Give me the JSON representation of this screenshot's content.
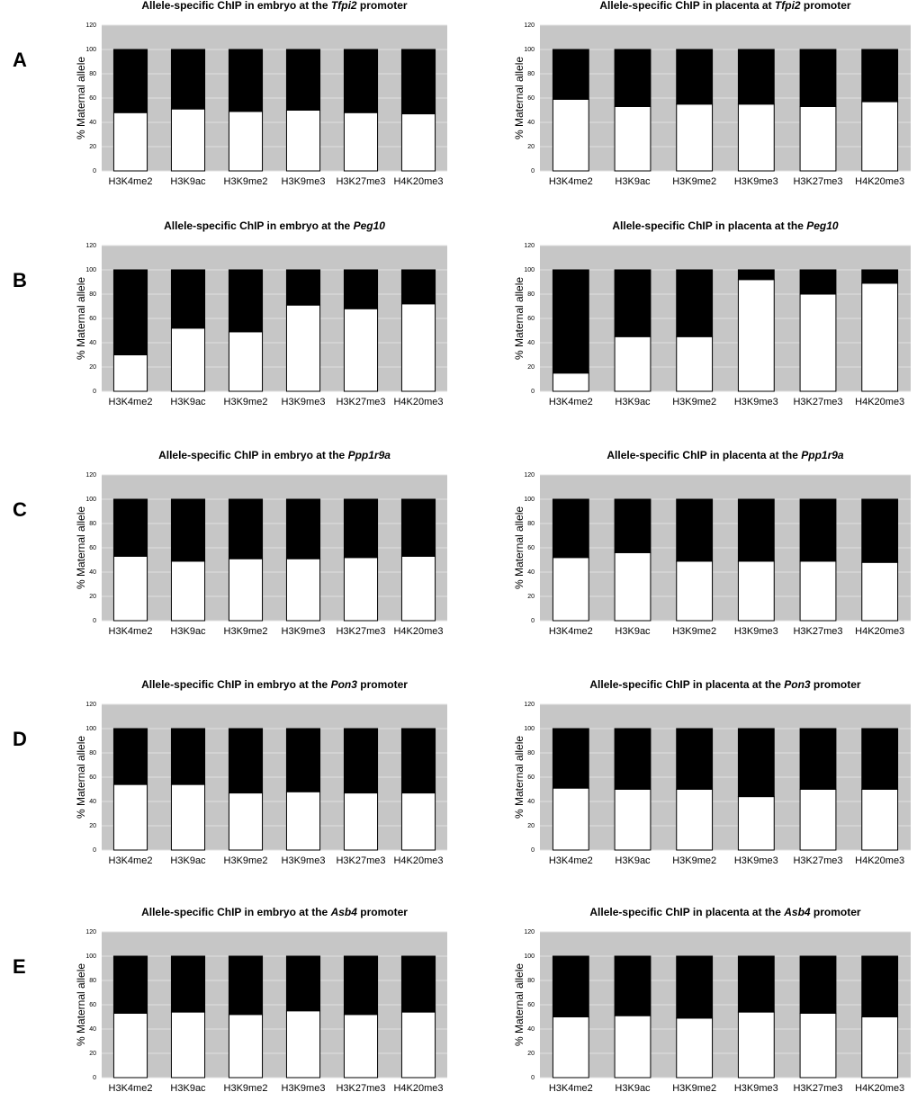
{
  "panel_labels": [
    "A",
    "B",
    "C",
    "D",
    "E"
  ],
  "chart_data": [
    {
      "type": "bar",
      "stacked": true,
      "title": [
        "Allele-specific ChIP in embryo at the ",
        "Tfpi2",
        " promoter"
      ],
      "ylabel": "% Maternal allele",
      "categories": [
        "H3K4me2",
        "H3K9ac",
        "H3K9me2",
        "H3K9me3",
        "H3K27me3",
        "H4K20me3"
      ],
      "series": [
        {
          "color": "#ffffff",
          "values": [
            48,
            51,
            49,
            50,
            48,
            47
          ]
        },
        {
          "color": "#000000",
          "values": [
            52,
            49,
            51,
            50,
            52,
            53
          ]
        }
      ],
      "ylim": [
        0,
        120
      ],
      "yticks": [
        0,
        20,
        40,
        60,
        80,
        100,
        120
      ],
      "grid": true
    },
    {
      "type": "bar",
      "stacked": true,
      "title": [
        "Allele-specific ChIP in placenta at ",
        "Tfpi2",
        " promoter"
      ],
      "ylabel": "% Maternal allele",
      "categories": [
        "H3K4me2",
        "H3K9ac",
        "H3K9me2",
        "H3K9me3",
        "H3K27me3",
        "H4K20me3"
      ],
      "series": [
        {
          "color": "#ffffff",
          "values": [
            59,
            53,
            55,
            55,
            53,
            57
          ]
        },
        {
          "color": "#000000",
          "values": [
            41,
            47,
            45,
            45,
            47,
            43
          ]
        }
      ],
      "ylim": [
        0,
        120
      ],
      "yticks": [
        0,
        20,
        40,
        60,
        80,
        100,
        120
      ],
      "grid": true
    },
    {
      "type": "bar",
      "stacked": true,
      "title": [
        "Allele-specific ChIP in embryo at the ",
        "Peg10"
      ],
      "ylabel": "% Maternal allele",
      "categories": [
        "H3K4me2",
        "H3K9ac",
        "H3K9me2",
        "H3K9me3",
        "H3K27me3",
        "H4K20me3"
      ],
      "series": [
        {
          "color": "#ffffff",
          "values": [
            30,
            52,
            49,
            71,
            68,
            72
          ]
        },
        {
          "color": "#000000",
          "values": [
            70,
            48,
            51,
            29,
            32,
            28
          ]
        }
      ],
      "ylim": [
        0,
        120
      ],
      "yticks": [
        0,
        20,
        40,
        60,
        80,
        100,
        120
      ],
      "grid": true
    },
    {
      "type": "bar",
      "stacked": true,
      "title": [
        "Allele-specific ChIP in placenta at the ",
        "Peg10"
      ],
      "ylabel": "% Maternal allele",
      "categories": [
        "H3K4me2",
        "H3K9ac",
        "H3K9me2",
        "H3K9me3",
        "H3K27me3",
        "H4K20me3"
      ],
      "series": [
        {
          "color": "#ffffff",
          "values": [
            15,
            45,
            45,
            92,
            80,
            89
          ]
        },
        {
          "color": "#000000",
          "values": [
            85,
            55,
            55,
            8,
            20,
            11
          ]
        }
      ],
      "ylim": [
        0,
        120
      ],
      "yticks": [
        0,
        20,
        40,
        60,
        80,
        100,
        120
      ],
      "grid": true
    },
    {
      "type": "bar",
      "stacked": true,
      "title": [
        "Allele-specific ChIP in embryo at the ",
        "Ppp1r9a"
      ],
      "ylabel": "% Maternal allele",
      "categories": [
        "H3K4me2",
        "H3K9ac",
        "H3K9me2",
        "H3K9me3",
        "H3K27me3",
        "H4K20me3"
      ],
      "series": [
        {
          "color": "#ffffff",
          "values": [
            53,
            49,
            51,
            51,
            52,
            53
          ]
        },
        {
          "color": "#000000",
          "values": [
            47,
            51,
            49,
            49,
            48,
            47
          ]
        }
      ],
      "ylim": [
        0,
        120
      ],
      "yticks": [
        0,
        20,
        40,
        60,
        80,
        100,
        120
      ],
      "grid": true
    },
    {
      "type": "bar",
      "stacked": true,
      "title": [
        "Allele-specific ChIP in placenta at the ",
        "Ppp1r9a"
      ],
      "ylabel": "% Maternal allele",
      "categories": [
        "H3K4me2",
        "H3K9ac",
        "H3K9me2",
        "H3K9me3",
        "H3K27me3",
        "H4K20me3"
      ],
      "series": [
        {
          "color": "#ffffff",
          "values": [
            52,
            56,
            49,
            49,
            49,
            48
          ]
        },
        {
          "color": "#000000",
          "values": [
            48,
            44,
            51,
            51,
            51,
            52
          ]
        }
      ],
      "ylim": [
        0,
        120
      ],
      "yticks": [
        0,
        20,
        40,
        60,
        80,
        100,
        120
      ],
      "grid": true
    },
    {
      "type": "bar",
      "stacked": true,
      "title": [
        "Allele-specific ChIP in embryo at the ",
        "Pon3",
        " promoter"
      ],
      "ylabel": "% Maternal allele",
      "categories": [
        "H3K4me2",
        "H3K9ac",
        "H3K9me2",
        "H3K9me3",
        "H3K27me3",
        "H4K20me3"
      ],
      "series": [
        {
          "color": "#ffffff",
          "values": [
            54,
            54,
            47,
            48,
            47,
            47
          ]
        },
        {
          "color": "#000000",
          "values": [
            46,
            46,
            53,
            52,
            53,
            53
          ]
        }
      ],
      "ylim": [
        0,
        120
      ],
      "yticks": [
        0,
        20,
        40,
        60,
        80,
        100,
        120
      ],
      "grid": true
    },
    {
      "type": "bar",
      "stacked": true,
      "title": [
        "Allele-specific ChIP in placenta at the ",
        "Pon3",
        " promoter"
      ],
      "ylabel": "% Maternal allele",
      "categories": [
        "H3K4me2",
        "H3K9ac",
        "H3K9me2",
        "H3K9me3",
        "H3K27me3",
        "H4K20me3"
      ],
      "series": [
        {
          "color": "#ffffff",
          "values": [
            51,
            50,
            50,
            44,
            50,
            50
          ]
        },
        {
          "color": "#000000",
          "values": [
            49,
            50,
            50,
            56,
            50,
            50
          ]
        }
      ],
      "ylim": [
        0,
        120
      ],
      "yticks": [
        0,
        20,
        40,
        60,
        80,
        100,
        120
      ],
      "grid": true
    },
    {
      "type": "bar",
      "stacked": true,
      "title": [
        "Allele-specific ChIP in embryo at the ",
        "Asb4",
        " promoter"
      ],
      "ylabel": "% Maternal allele",
      "categories": [
        "H3K4me2",
        "H3K9ac",
        "H3K9me2",
        "H3K9me3",
        "H3K27me3",
        "H4K20me3"
      ],
      "series": [
        {
          "color": "#ffffff",
          "values": [
            53,
            54,
            52,
            55,
            52,
            54
          ]
        },
        {
          "color": "#000000",
          "values": [
            47,
            46,
            48,
            45,
            48,
            46
          ]
        }
      ],
      "ylim": [
        0,
        120
      ],
      "yticks": [
        0,
        20,
        40,
        60,
        80,
        100,
        120
      ],
      "grid": true
    },
    {
      "type": "bar",
      "stacked": true,
      "title": [
        "Allele-specific ChIP in placenta at the ",
        "Asb4",
        " promoter"
      ],
      "ylabel": "% Maternal allele",
      "categories": [
        "H3K4me2",
        "H3K9ac",
        "H3K9me2",
        "H3K9me3",
        "H3K27me3",
        "H4K20me3"
      ],
      "series": [
        {
          "color": "#ffffff",
          "values": [
            50,
            51,
            49,
            54,
            53,
            50
          ]
        },
        {
          "color": "#000000",
          "values": [
            50,
            49,
            51,
            46,
            47,
            50
          ]
        }
      ],
      "ylim": [
        0,
        120
      ],
      "yticks": [
        0,
        20,
        40,
        60,
        80,
        100,
        120
      ],
      "grid": true
    }
  ]
}
